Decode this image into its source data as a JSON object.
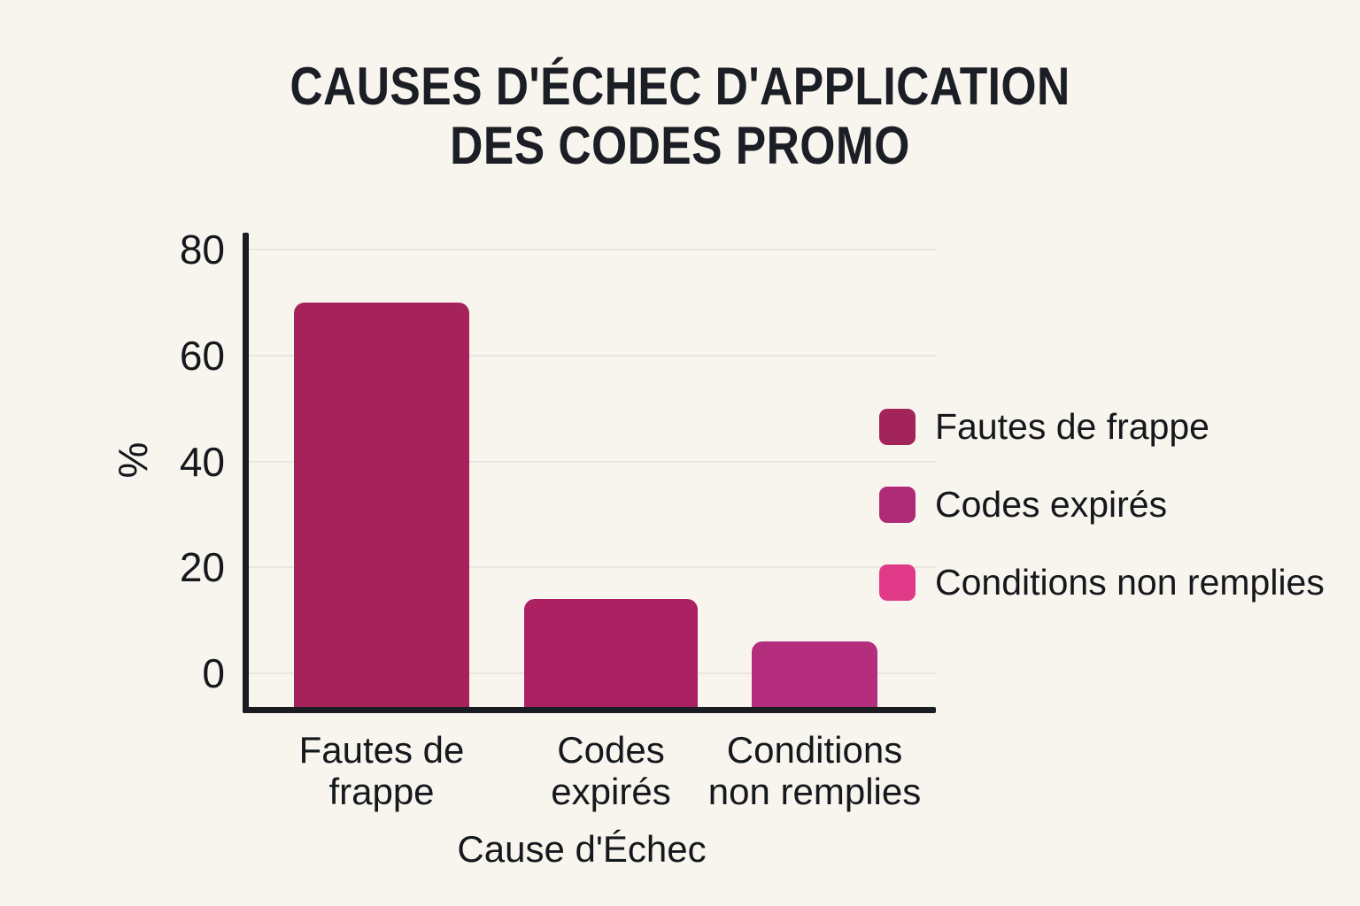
{
  "page": {
    "background_color": "#f8f4ee",
    "text_color": "#15181c",
    "axis_color": "#191c20",
    "gridline_color": "#e9e6e1"
  },
  "chart_data": {
    "type": "bar",
    "title": "CAUSES D'ÉCHEC D'APPLICATION DES CODES PROMO",
    "title_lines": [
      "CAUSES D'ÉCHEC D'APPLICATION",
      "DES CODES PROMO"
    ],
    "xlabel": "Cause d'Échec",
    "ylabel": "%",
    "categories": [
      "Fautes de frappe",
      "Codes expirés",
      "Conditions non remplies"
    ],
    "category_lines": [
      [
        "Fautes de",
        "frappe"
      ],
      [
        "Codes",
        "expirés"
      ],
      [
        "Conditions",
        "non remplies"
      ]
    ],
    "values": [
      70,
      14,
      6
    ],
    "unit": "%",
    "bar_colors": [
      "#a52359",
      "#ab2161",
      "#b42e7d"
    ],
    "ylim": [
      0,
      80
    ],
    "yticks": [
      0,
      20,
      40,
      60,
      80
    ],
    "grid": "horizontal",
    "legend_position": "right",
    "legend": [
      {
        "label": "Fautes de frappe",
        "color": "#a3245a"
      },
      {
        "label": "Codes expirés",
        "color": "#af2b77"
      },
      {
        "label": "Conditions non remplies",
        "color": "#e03a88"
      }
    ]
  }
}
